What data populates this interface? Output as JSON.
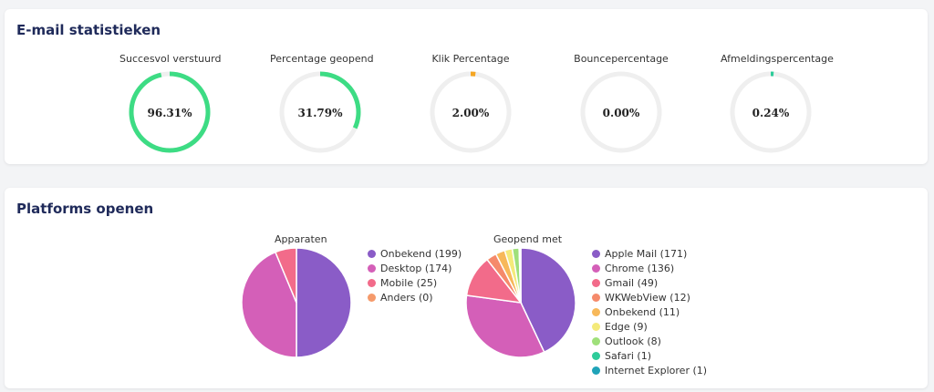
{
  "stats_card": {
    "title": "E-mail statistieken"
  },
  "platforms_card": {
    "title": "Platforms openen"
  },
  "colors": {
    "track": "#efefef",
    "green": "#3ddc84",
    "orange": "#f5a623",
    "teal": "#2ecc9a"
  },
  "chart_data": [
    {
      "type": "gauge",
      "title": "Succesvol verstuurd",
      "value": 96.31,
      "value_label": "96.31%",
      "max": 100,
      "color": "#3ddc84"
    },
    {
      "type": "gauge",
      "title": "Percentage geopend",
      "value": 31.79,
      "value_label": "31.79%",
      "max": 100,
      "color": "#3ddc84"
    },
    {
      "type": "gauge",
      "title": "Klik Percentage",
      "value": 2.0,
      "value_label": "2.00%",
      "max": 100,
      "color": "#f5a623"
    },
    {
      "type": "gauge",
      "title": "Bouncepercentage",
      "value": 0.0,
      "value_label": "0.00%",
      "max": 100,
      "color": "#3ddc84"
    },
    {
      "type": "gauge",
      "title": "Afmeldingspercentage",
      "value": 0.24,
      "value_label": "0.24%",
      "max": 100,
      "color": "#2ecc9a"
    },
    {
      "type": "pie",
      "title": "Apparaten",
      "legend_position": "right",
      "slices": [
        {
          "label": "Onbekend (199)",
          "value": 199,
          "color": "#8a5cc7"
        },
        {
          "label": "Desktop (174)",
          "value": 174,
          "color": "#d45fb8"
        },
        {
          "label": "Mobile (25)",
          "value": 25,
          "color": "#f26b8a"
        },
        {
          "label": "Anders (0)",
          "value": 0,
          "color": "#f59a6b"
        }
      ]
    },
    {
      "type": "pie",
      "title": "Geopend met",
      "legend_position": "right",
      "slices": [
        {
          "label": "Apple Mail (171)",
          "value": 171,
          "color": "#8a5cc7"
        },
        {
          "label": "Chrome (136)",
          "value": 136,
          "color": "#d45fb8"
        },
        {
          "label": "Gmail (49)",
          "value": 49,
          "color": "#f26b8a"
        },
        {
          "label": "WKWebView (12)",
          "value": 12,
          "color": "#f58a6b"
        },
        {
          "label": "Onbekend (11)",
          "value": 11,
          "color": "#f7b85a"
        },
        {
          "label": "Edge (9)",
          "value": 9,
          "color": "#f4ea7a"
        },
        {
          "label": "Outlook (8)",
          "value": 8,
          "color": "#9fe07a"
        },
        {
          "label": "Safari (1)",
          "value": 1,
          "color": "#2ecc9a"
        },
        {
          "label": "Internet Explorer (1)",
          "value": 1,
          "color": "#1fa3b8"
        }
      ]
    }
  ]
}
